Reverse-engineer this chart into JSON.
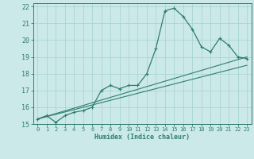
{
  "title": "",
  "xlabel": "Humidex (Indice chaleur)",
  "xlim": [
    -0.5,
    23.5
  ],
  "ylim": [
    15,
    22.2
  ],
  "xticks": [
    0,
    1,
    2,
    3,
    4,
    5,
    6,
    7,
    8,
    9,
    10,
    11,
    12,
    13,
    14,
    15,
    16,
    17,
    18,
    19,
    20,
    21,
    22,
    23
  ],
  "yticks": [
    15,
    16,
    17,
    18,
    19,
    20,
    21,
    22
  ],
  "bg_color": "#cce9e9",
  "line_color": "#2e7d6e",
  "grid_color": "#aad4d4",
  "series1_x": [
    0,
    1,
    2,
    3,
    4,
    5,
    6,
    7,
    8,
    9,
    10,
    11,
    12,
    13,
    14,
    15,
    16,
    17,
    18,
    19,
    20,
    21,
    22,
    23
  ],
  "series1_y": [
    15.3,
    15.5,
    15.1,
    15.5,
    15.7,
    15.8,
    16.0,
    17.0,
    17.3,
    17.1,
    17.3,
    17.3,
    18.0,
    19.5,
    21.75,
    21.9,
    21.4,
    20.65,
    19.6,
    19.3,
    20.1,
    19.7,
    19.0,
    18.9
  ],
  "series2_x": [
    0,
    23
  ],
  "series2_y": [
    15.3,
    19.0
  ],
  "series3_x": [
    0,
    23
  ],
  "series3_y": [
    15.3,
    18.5
  ]
}
